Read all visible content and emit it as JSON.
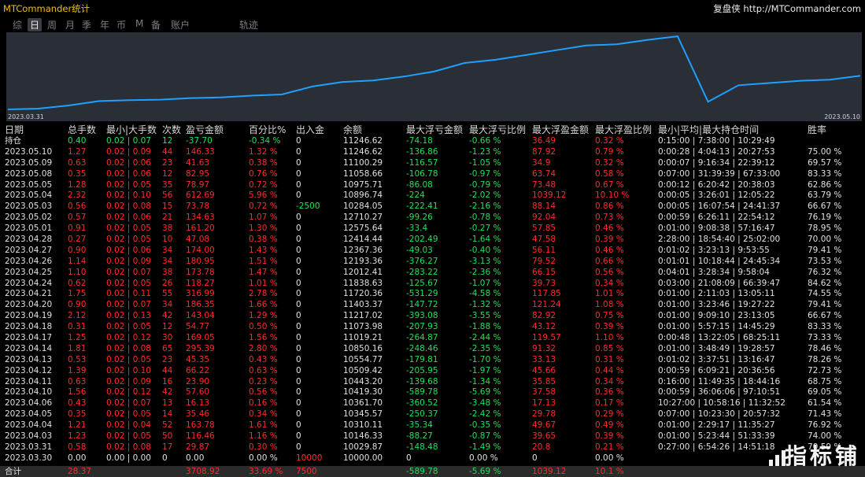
{
  "app": {
    "title": "MTCommander统计",
    "brand_name": "复盘侠",
    "brand_url": "http://MTCommander.com"
  },
  "nav": [
    {
      "label": "综",
      "active": false
    },
    {
      "label": "日",
      "active": true
    },
    {
      "label": "周",
      "active": false
    },
    {
      "label": "月",
      "active": false
    },
    {
      "label": "季",
      "active": false
    },
    {
      "label": "年",
      "active": false
    },
    {
      "label": "币",
      "active": false
    },
    {
      "label": "M",
      "active": false
    },
    {
      "label": "备",
      "active": false
    },
    {
      "label": "账户",
      "active": false
    },
    {
      "label": "轨迹",
      "active": false
    }
  ],
  "chart_data": {
    "type": "line",
    "x_start_label": "2023.03.31",
    "x_end_label": "2023.05.10",
    "series": [
      {
        "color": "#1ea0ff",
        "x": [
          "2023.03.30",
          "2023.03.31",
          "2023.04.03",
          "2023.04.04",
          "2023.04.05",
          "2023.04.06",
          "2023.04.10",
          "2023.04.11",
          "2023.04.12",
          "2023.04.13",
          "2023.04.14",
          "2023.04.17",
          "2023.04.18",
          "2023.04.19",
          "2023.04.20",
          "2023.04.21",
          "2023.04.24",
          "2023.04.25",
          "2023.04.26",
          "2023.04.27",
          "2023.04.28",
          "2023.05.01",
          "2023.05.02",
          "2023.05.03",
          "2023.05.04",
          "2023.05.05",
          "2023.05.08",
          "2023.05.09",
          "2023.05.10"
        ],
        "values": [
          10000.0,
          10029.87,
          10146.33,
          10310.11,
          10345.57,
          10361.7,
          10419.3,
          10443.2,
          10509.42,
          10554.77,
          10850.16,
          11019.21,
          11073.98,
          11217.02,
          11403.37,
          11720.36,
          11838.63,
          12012.41,
          12193.36,
          12367.36,
          12414.44,
          12575.64,
          12710.27,
          10284.05,
          10896.74,
          10975.71,
          11058.66,
          11100.29,
          11246.62
        ]
      }
    ]
  },
  "table": {
    "headers": [
      "日期",
      "总手数",
      "最小|大手数",
      "次数",
      "盈亏金额",
      "百分比%",
      "出入金",
      "余额",
      "最大浮亏金额",
      "最大浮亏比例",
      "最大浮盈金额",
      "最大浮盈比例",
      "最小|平均|最大持仓时间",
      "胜率"
    ],
    "rows": [
      {
        "c": [
          "持仓",
          "0.40",
          "0.02 | 0.07",
          "12",
          "-37.70",
          "-0.34 %",
          "0",
          "11246.62",
          "-74.18",
          "-0.66 %",
          "36.49",
          "0.32 %",
          "0:15:00 | 7:38:00 | 10:29:49",
          ""
        ],
        "cls": [
          "plain",
          "neg",
          "neg",
          "neg",
          "neg",
          "neg",
          "plain",
          "plain",
          "neg",
          "neg",
          "pos",
          "pos",
          "plain",
          "plain"
        ]
      },
      {
        "c": [
          "2023.05.10",
          "1.27",
          "0.02 | 0.09",
          "44",
          "146.33",
          "1.32 %",
          "0",
          "11246.62",
          "-136.86",
          "-1.23 %",
          "87.92",
          "0.79 %",
          "0:00:28 | 4:04:13 | 20:27:53",
          "75.00 %"
        ]
      },
      {
        "c": [
          "2023.05.09",
          "0.63",
          "0.02 | 0.06",
          "23",
          "41.63",
          "0.38 %",
          "0",
          "11100.29",
          "-116.57",
          "-1.05 %",
          "34.9",
          "0.32 %",
          "0:00:07 | 9:16:34 | 22:39:12",
          "69.57 %"
        ]
      },
      {
        "c": [
          "2023.05.08",
          "0.35",
          "0.02 | 0.06",
          "12",
          "82.95",
          "0.76 %",
          "0",
          "11058.66",
          "-106.78",
          "-0.97 %",
          "63.74",
          "0.58 %",
          "0:07:00 | 31:39:39 | 67:33:00",
          "83.33 %"
        ]
      },
      {
        "c": [
          "2023.05.05",
          "1.28",
          "0.02 | 0.05",
          "35",
          "78.97",
          "0.72 %",
          "0",
          "10975.71",
          "-86.08",
          "-0.79 %",
          "73.48",
          "0.67 %",
          "0:00:12 | 6:20:42 | 20:38:03",
          "62.86 %"
        ]
      },
      {
        "c": [
          "2023.05.04",
          "2.32",
          "0.02 | 0.10",
          "56",
          "612.69",
          "5.96 %",
          "0",
          "10896.74",
          "-224",
          "-2.02 %",
          "1039.12",
          "10.10 %",
          "0:00:05 | 3:26:01 | 12:05:22",
          "63.79 %"
        ]
      },
      {
        "c": [
          "2023.05.03",
          "0.56",
          "0.02 | 0.08",
          "15",
          "73.78",
          "0.72 %",
          "-2500",
          "10284.05",
          "-222.41",
          "-2.16 %",
          "88.14",
          "0.86 %",
          "0:00:05 | 16:07:54 | 24:41:37",
          "66.67 %"
        ],
        "cls": [
          "plain",
          "pos",
          "pos",
          "pos",
          "pos",
          "pos",
          "neg",
          "plain",
          "neg",
          "neg",
          "pos",
          "pos",
          "plain",
          "plain"
        ]
      },
      {
        "c": [
          "2023.05.02",
          "0.57",
          "0.02 | 0.06",
          "21",
          "134.63",
          "1.07 %",
          "0",
          "12710.27",
          "-99.26",
          "-0.78 %",
          "92.04",
          "0.73 %",
          "0:00:59 | 6:26:11 | 22:54:12",
          "76.19 %"
        ]
      },
      {
        "c": [
          "2023.05.01",
          "0.91",
          "0.02 | 0.05",
          "38",
          "161.20",
          "1.30 %",
          "0",
          "12575.64",
          "-33.4",
          "-0.27 %",
          "57.85",
          "0.46 %",
          "0:01:00 | 9:08:38 | 57:16:47",
          "78.95 %"
        ]
      },
      {
        "c": [
          "2023.04.28",
          "0.27",
          "0.02 | 0.05",
          "10",
          "47.08",
          "0.38 %",
          "0",
          "12414.44",
          "-202.49",
          "-1.64 %",
          "47.58",
          "0.39 %",
          "2:28:00 | 18:54:40 | 25:02:00",
          "70.00 %"
        ]
      },
      {
        "c": [
          "2023.04.27",
          "0.90",
          "0.02 | 0.06",
          "34",
          "174.00",
          "1.43 %",
          "0",
          "12367.36",
          "-49.03",
          "-0.40 %",
          "56.11",
          "0.46 %",
          "0:01:02 | 3:23:13 | 9:53:55",
          "79.41 %"
        ]
      },
      {
        "c": [
          "2023.04.26",
          "1.14",
          "0.02 | 0.09",
          "34",
          "180.95",
          "1.51 %",
          "0",
          "12193.36",
          "-376.27",
          "-3.13 %",
          "79.52",
          "0.66 %",
          "0:01:01 | 10:18:44 | 24:45:34",
          "73.53 %"
        ]
      },
      {
        "c": [
          "2023.04.25",
          "1.10",
          "0.02 | 0.07",
          "38",
          "173.78",
          "1.47 %",
          "0",
          "12012.41",
          "-283.22",
          "-2.36 %",
          "66.15",
          "0.56 %",
          "0:04:01 | 3:28:34 | 9:58:04",
          "76.32 %"
        ]
      },
      {
        "c": [
          "2023.04.24",
          "0.62",
          "0.02 | 0.05",
          "26",
          "118.27",
          "1.01 %",
          "0",
          "11838.63",
          "-125.67",
          "-1.07 %",
          "39.73",
          "0.34 %",
          "0:03:00 | 21:08:09 | 66:39:47",
          "84.62 %"
        ]
      },
      {
        "c": [
          "2023.04.21",
          "1.75",
          "0.02 | 0.11",
          "55",
          "316.99",
          "2.78 %",
          "0",
          "11720.36",
          "-531.29",
          "-4.58 %",
          "117.85",
          "1.01 %",
          "0:01:00 | 2:11:03 | 13:05:11",
          "74.55 %"
        ]
      },
      {
        "c": [
          "2023.04.20",
          "0.90",
          "0.02 | 0.07",
          "34",
          "186.35",
          "1.66 %",
          "0",
          "11403.37",
          "-147.72",
          "-1.32 %",
          "121.24",
          "1.08 %",
          "0:01:00 | 3:23:46 | 19:27:22",
          "79.41 %"
        ]
      },
      {
        "c": [
          "2023.04.19",
          "2.12",
          "0.02 | 0.13",
          "42",
          "143.04",
          "1.29 %",
          "0",
          "11217.02",
          "-393.08",
          "-3.55 %",
          "82.92",
          "0.75 %",
          "0:01:00 | 9:09:10 | 23:13:05",
          "66.67 %"
        ]
      },
      {
        "c": [
          "2023.04.18",
          "0.31",
          "0.02 | 0.05",
          "12",
          "54.77",
          "0.50 %",
          "0",
          "11073.98",
          "-207.93",
          "-1.88 %",
          "43.12",
          "0.39 %",
          "0:01:00 | 5:57:15 | 14:45:29",
          "83.33 %"
        ]
      },
      {
        "c": [
          "2023.04.17",
          "1.25",
          "0.02 | 0.12",
          "30",
          "169.05",
          "1.56 %",
          "0",
          "11019.21",
          "-264.87",
          "-2.44 %",
          "119.57",
          "1.10 %",
          "0:00:48 | 13:22:05 | 68:25:11",
          "73.33 %"
        ]
      },
      {
        "c": [
          "2023.04.14",
          "1.81",
          "0.02 | 0.08",
          "65",
          "295.39",
          "2.80 %",
          "0",
          "10850.16",
          "-248.46",
          "-2.35 %",
          "91.32",
          "0.85 %",
          "0:01:00 | 3:48:49 | 19:28:57",
          "78.46 %"
        ]
      },
      {
        "c": [
          "2023.04.13",
          "0.53",
          "0.02 | 0.05",
          "23",
          "45.35",
          "0.43 %",
          "0",
          "10554.77",
          "-179.81",
          "-1.70 %",
          "33.13",
          "0.31 %",
          "0:01:02 | 3:37:51 | 13:16:47",
          "78.26 %"
        ]
      },
      {
        "c": [
          "2023.04.12",
          "1.39",
          "0.02 | 0.10",
          "44",
          "66.22",
          "0.63 %",
          "0",
          "10509.42",
          "-205.95",
          "-1.97 %",
          "45.66",
          "0.44 %",
          "0:00:59 | 6:09:21 | 20:36:56",
          "72.73 %"
        ]
      },
      {
        "c": [
          "2023.04.11",
          "0.63",
          "0.02 | 0.09",
          "16",
          "23.90",
          "0.23 %",
          "0",
          "10443.20",
          "-139.68",
          "-1.34 %",
          "35.85",
          "0.34 %",
          "0:16:00 | 11:49:35 | 18:44:16",
          "68.75 %"
        ]
      },
      {
        "c": [
          "2023.04.10",
          "1.56",
          "0.02 | 0.12",
          "42",
          "57.60",
          "0.56 %",
          "0",
          "10419.30",
          "-589.78",
          "-5.69 %",
          "37.58",
          "0.36 %",
          "0:00:59 | 36:06:06 | 97:10:51",
          "69.05 %"
        ]
      },
      {
        "c": [
          "2023.04.06",
          "0.43",
          "0.02 | 0.07",
          "13",
          "16.13",
          "0.16 %",
          "0",
          "10361.70",
          "-360.52",
          "-3.48 %",
          "17.13",
          "0.17 %",
          "10:27:00 | 10:58:16 | 11:32:52",
          "61.54 %"
        ]
      },
      {
        "c": [
          "2023.04.05",
          "0.35",
          "0.02 | 0.05",
          "14",
          "35.46",
          "0.34 %",
          "0",
          "10345.57",
          "-250.37",
          "-2.42 %",
          "29.78",
          "0.29 %",
          "0:07:00 | 10:23:30 | 20:57:32",
          "71.43 %"
        ]
      },
      {
        "c": [
          "2023.04.04",
          "1.21",
          "0.02 | 0.04",
          "52",
          "163.78",
          "1.61 %",
          "0",
          "10310.11",
          "-35.34",
          "-0.35 %",
          "49.67",
          "0.49 %",
          "0:01:00 | 2:29:17 | 11:35:27",
          "76.92 %"
        ]
      },
      {
        "c": [
          "2023.04.03",
          "1.23",
          "0.02 | 0.05",
          "50",
          "116.46",
          "1.16 %",
          "0",
          "10146.33",
          "-88.27",
          "-0.87 %",
          "39.65",
          "0.39 %",
          "0:01:00 | 5:23:44 | 51:33:39",
          "74.00 %"
        ]
      },
      {
        "c": [
          "2023.03.31",
          "0.58",
          "0.02 | 0.08",
          "17",
          "29.87",
          "0.30 %",
          "0",
          "10029.87",
          "-148.48",
          "-1.49 %",
          "20.8",
          "0.21 %",
          "0:27:00 | 6:54:26 | 14:51:18",
          "70.59 %"
        ]
      },
      {
        "c": [
          "2023.03.30",
          "0.00",
          "0.00 | 0.00",
          "0",
          "0.00",
          "0.00 %",
          "10000",
          "10000.00",
          "0",
          "0.00 %",
          "0",
          "0.00 %",
          "",
          ""
        ],
        "cls": [
          "plain",
          "zero",
          "zero",
          "zero",
          "zero",
          "zero",
          "pos",
          "plain",
          "zero",
          "zero",
          "zero",
          "zero",
          "plain",
          "plain"
        ]
      }
    ],
    "total": {
      "c": [
        "合计",
        "28.37",
        "",
        "",
        "3708.92",
        "33.69 %",
        "7500",
        "",
        "-589.78",
        "-5.69 %",
        "1039.12",
        "10.1 %",
        "",
        ""
      ],
      "cls": [
        "plain",
        "pos",
        "pos",
        "pos",
        "pos",
        "pos",
        "pos",
        "plain",
        "neg",
        "neg",
        "pos",
        "pos",
        "plain",
        "plain"
      ]
    }
  },
  "watermark": {
    "text": "指标铺"
  },
  "colors": {
    "profit": "#ff2a2a",
    "loss": "#21e05a",
    "title": "#f0c000",
    "line": "#1ea0ff",
    "chart_bg": "#2a2e36"
  }
}
